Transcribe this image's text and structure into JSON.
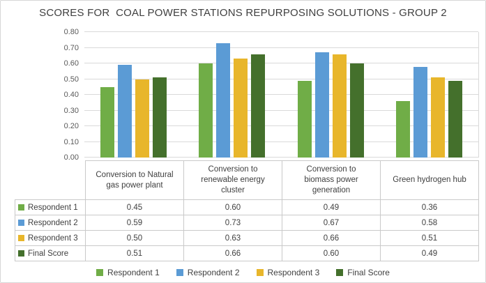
{
  "chart_data": {
    "type": "bar",
    "title": "SCORES FOR  COAL POWER STATIONS REPURPOSING SOLUTIONS - GROUP 2",
    "categories": [
      "Conversion to Natural gas power plant",
      "Conversion to renewable energy cluster",
      "Conversion to biomass power generation",
      "Green hydrogen hub"
    ],
    "series": [
      {
        "name": "Respondent 1",
        "color": "#70AD47",
        "values": [
          0.45,
          0.6,
          0.49,
          0.36
        ]
      },
      {
        "name": "Respondent 2",
        "color": "#5B9BD5",
        "values": [
          0.59,
          0.73,
          0.67,
          0.58
        ]
      },
      {
        "name": "Respondent 3",
        "color": "#E8B62B",
        "values": [
          0.5,
          0.63,
          0.66,
          0.51
        ]
      },
      {
        "name": "Final Score",
        "color": "#44702C",
        "values": [
          0.51,
          0.66,
          0.6,
          0.49
        ]
      }
    ],
    "ylim": [
      0,
      0.8
    ],
    "yticks": [
      "0.80",
      "0.70",
      "0.60",
      "0.50",
      "0.40",
      "0.30",
      "0.20",
      "0.10",
      "0.00"
    ],
    "grid": true,
    "legend_position": "bottom",
    "gridline_color": "#D9D9D9",
    "axis_label_color": "#595959",
    "text_color": "#3F3F3F",
    "table_border_color": "#C9C9C9"
  },
  "table": {
    "column_header_lines": [
      [
        "Conversion to Natural",
        "gas power plant"
      ],
      [
        "Conversion to",
        "renewable energy",
        "cluster"
      ],
      [
        "Conversion to",
        "biomass power",
        "generation"
      ],
      [
        "Green hydrogen hub"
      ]
    ],
    "rows": [
      {
        "label": "Respondent 1",
        "color": "#70AD47",
        "values": [
          "0.45",
          "0.60",
          "0.49",
          "0.36"
        ]
      },
      {
        "label": "Respondent 2",
        "color": "#5B9BD5",
        "values": [
          "0.59",
          "0.73",
          "0.67",
          "0.58"
        ]
      },
      {
        "label": "Respondent 3",
        "color": "#E8B62B",
        "values": [
          "0.50",
          "0.63",
          "0.66",
          "0.51"
        ]
      },
      {
        "label": "Final Score",
        "color": "#44702C",
        "values": [
          "0.51",
          "0.66",
          "0.60",
          "0.49"
        ]
      }
    ]
  },
  "legend": {
    "items": [
      {
        "label": "Respondent 1",
        "color": "#70AD47"
      },
      {
        "label": "Respondent 2",
        "color": "#5B9BD5"
      },
      {
        "label": "Respondent 3",
        "color": "#E8B62B"
      },
      {
        "label": "Final Score",
        "color": "#44702C"
      }
    ]
  }
}
